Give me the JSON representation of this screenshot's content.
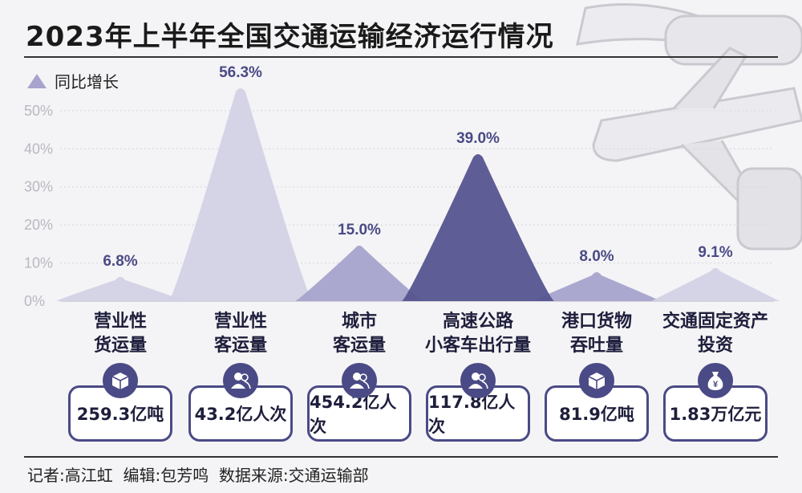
{
  "title": "2023年上半年全国交通运输经济运行情况",
  "legend": "同比增长",
  "footer": "记者:高江虹  编辑:包芳鸣  数据来源:交通运输部",
  "colors": {
    "light": "#d3d1e5",
    "medium": "#a7a3cc",
    "dark": "#55548f",
    "accent": "#4a4a86"
  },
  "chart_data": {
    "type": "bar",
    "ylim": [
      0,
      56.3
    ],
    "yticks": [
      "0%",
      "10%",
      "20%",
      "30%",
      "40%",
      "50%"
    ],
    "categories": [
      "营业性货运量",
      "营业性客运量",
      "城市客运量",
      "高速公路小客车出行量",
      "港口货物吞吐量",
      "交通固定资产投资"
    ],
    "series": [
      {
        "name": "同比增长",
        "values": [
          6.8,
          56.3,
          15.0,
          39.0,
          8.0,
          9.1
        ]
      }
    ],
    "data_labels": [
      "6.8%",
      "56.3%",
      "15.0%",
      "39.0%",
      "8.0%",
      "9.1%"
    ],
    "grid": true
  },
  "categories_display": [
    {
      "line1": "营业性",
      "line2": "货运量",
      "icon": "box-icon",
      "total": "259.3亿吨"
    },
    {
      "line1": "营业性",
      "line2": "客运量",
      "icon": "people-icon",
      "total": "43.2亿人次"
    },
    {
      "line1": "城市",
      "line2": "客运量",
      "icon": "people-icon",
      "total": "454.2亿人次"
    },
    {
      "line1": "高速公路",
      "line2": "小客车出行量",
      "icon": "people-icon",
      "total": "117.8亿人次"
    },
    {
      "line1": "港口货物",
      "line2": "吞吐量",
      "icon": "box-icon",
      "total": "81.9亿吨"
    },
    {
      "line1": "交通固定资产",
      "line2": "投资",
      "icon": "money-bag-icon",
      "total": "1.83万亿元"
    }
  ]
}
